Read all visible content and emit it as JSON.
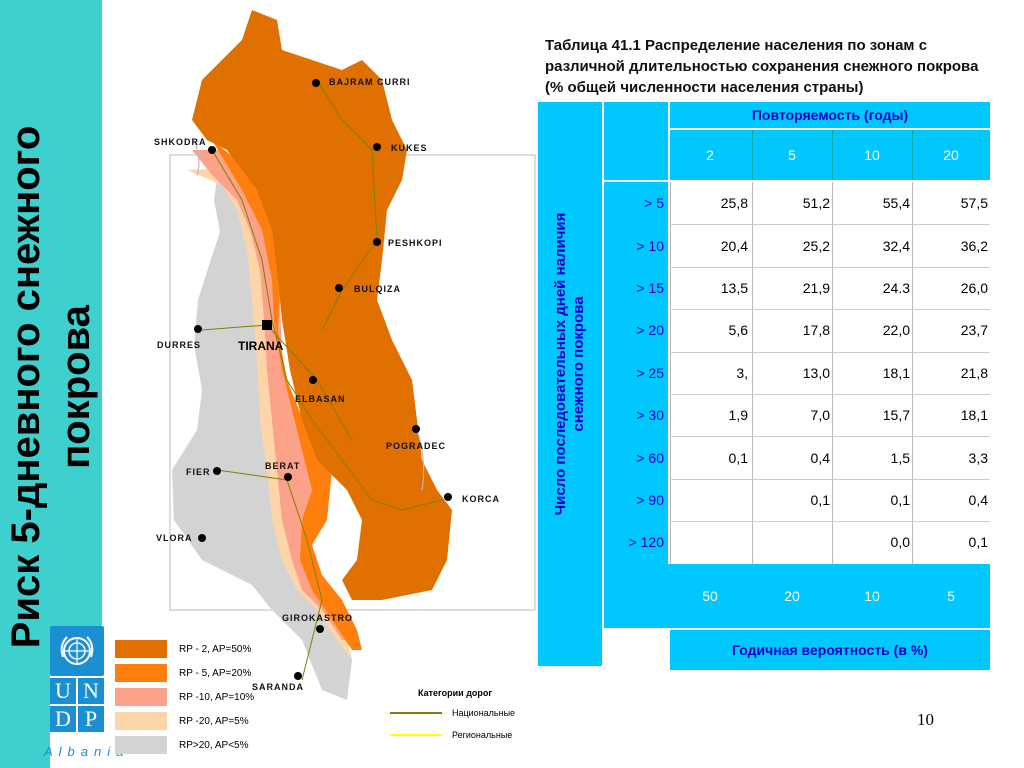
{
  "side_title": "Риск 5-дневного снежного покрова",
  "org": {
    "letters": [
      "U",
      "N",
      "D",
      "P"
    ],
    "country": "Albania",
    "emblem": "un-emblem-icon",
    "color": "#1b8fd1"
  },
  "map": {
    "cities": [
      {
        "name": "BAJRAM CURRI"
      },
      {
        "name": "SHKODRA"
      },
      {
        "name": "KUKES"
      },
      {
        "name": "PESHKOPI"
      },
      {
        "name": "BULQIZA"
      },
      {
        "name": "DURRES"
      },
      {
        "name": "TIRANA"
      },
      {
        "name": "ELBASAN"
      },
      {
        "name": "POGRADEC"
      },
      {
        "name": "BERAT"
      },
      {
        "name": "FIER"
      },
      {
        "name": "KORCA"
      },
      {
        "name": "VLORA"
      },
      {
        "name": "GIROKASTRO"
      },
      {
        "name": "SARANDA"
      }
    ],
    "capital": "TIRANA"
  },
  "legend": [
    {
      "label": "RP  - 2, AP=50%",
      "color": "#e07000"
    },
    {
      "label": "RP  - 5, AP=20%",
      "color": "#ff7f0e"
    },
    {
      "label": "RP -10, AP=10%",
      "color": "#fca28a"
    },
    {
      "label": "RP -20, AP=5%",
      "color": "#fdd5a8"
    },
    {
      "label": "RP>20, AP<5%",
      "color": "#d3d3d3"
    }
  ],
  "roads": {
    "title": "Категории дорог",
    "items": [
      {
        "label": "Национальные",
        "color": "#808000"
      },
      {
        "label": "Региональные",
        "color": "#ffff00"
      }
    ]
  },
  "table": {
    "title": "Таблица 41.1 Распределение населения по зонам с различной длительностью сохранения снежного покрова (% общей численности населения страны)",
    "header_top": "Повторяемость (годы)",
    "years": [
      "2",
      "5",
      "10",
      "20"
    ],
    "row_axis_label": "Число последовательных дней наличия снежного покрова",
    "rows": [
      {
        "label": "> 5",
        "values": [
          "25,8",
          "51,2",
          "55,4",
          "57,5"
        ]
      },
      {
        "label": "> 10",
        "values": [
          "20,4",
          "25,2",
          "32,4",
          "36,2"
        ]
      },
      {
        "label": "> 15",
        "values": [
          "13,5",
          "21,9",
          "24.3",
          "26,0"
        ]
      },
      {
        "label": "> 20",
        "values": [
          "5,6",
          "17,8",
          "22,0",
          "23,7"
        ]
      },
      {
        "label": "> 25",
        "values": [
          "3,",
          "13,0",
          "18,1",
          "21,8"
        ]
      },
      {
        "label": "> 30",
        "values": [
          "1,9",
          "7,0",
          "15,7",
          "18,1"
        ]
      },
      {
        "label": "> 60",
        "values": [
          "0,1",
          "0,4",
          "1,5",
          "3,3"
        ]
      },
      {
        "label": "> 90",
        "values": [
          "",
          "0,1",
          "0,1",
          "0,4"
        ]
      },
      {
        "label": "> 120",
        "values": [
          "",
          "",
          "0,0",
          "0,1"
        ]
      }
    ],
    "probabilities": [
      "50",
      "20",
      "10",
      "5"
    ],
    "footer": "Годичная вероятность (в %)"
  },
  "page_number": "10"
}
